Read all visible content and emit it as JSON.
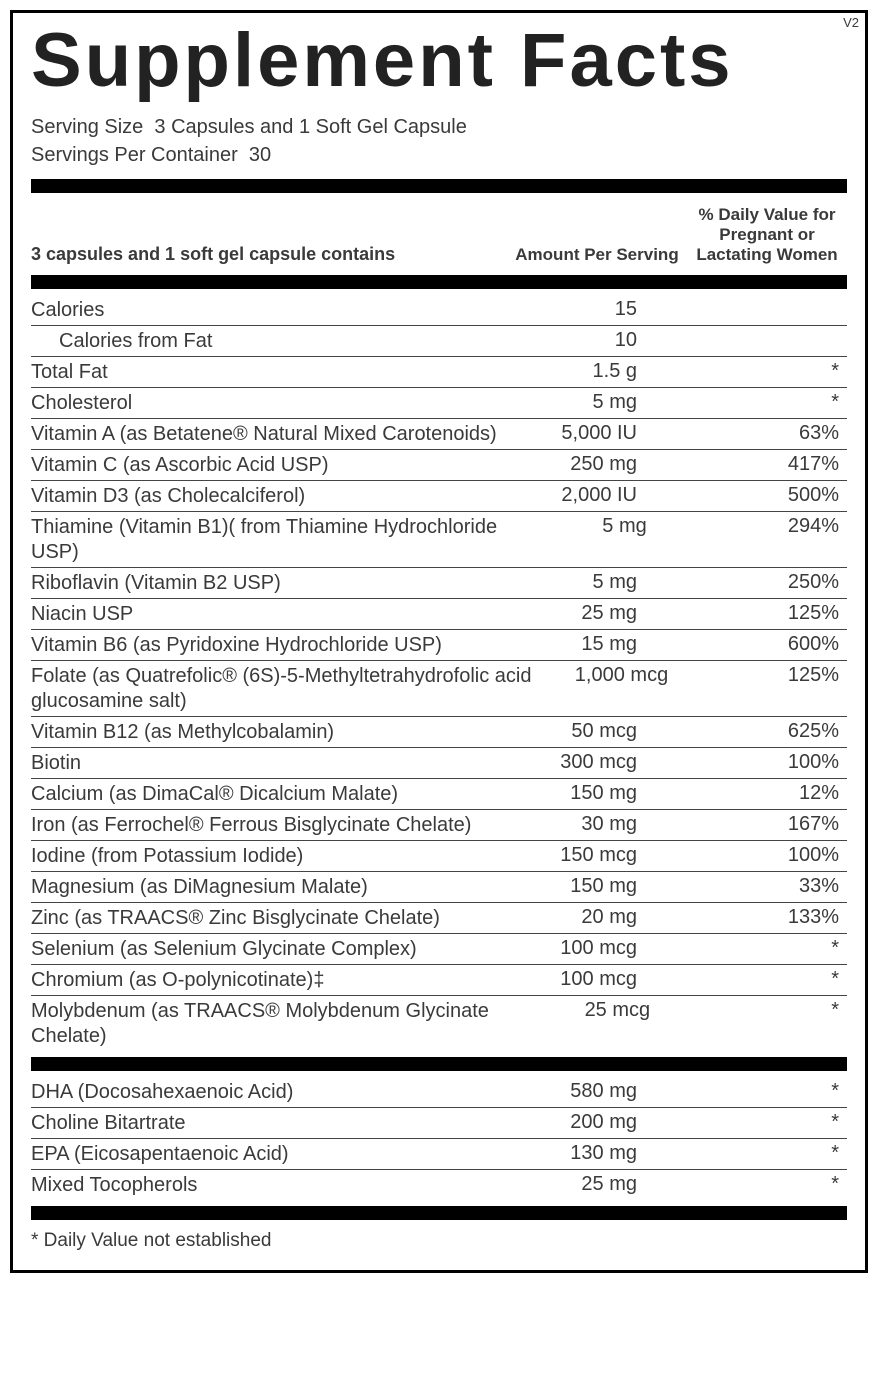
{
  "version": "V2",
  "title": "Supplement Facts",
  "serving_size_label": "Serving Size",
  "serving_size_value": "3 Capsules and 1 Soft Gel Capsule",
  "servings_per_container_label": "Servings Per Container",
  "servings_per_container_value": "30",
  "header": {
    "name": "3 capsules and 1 soft gel capsule contains",
    "amount": "Amount Per Serving",
    "dv": "% Daily Value for Pregnant or Lactating Women"
  },
  "section1": [
    {
      "name": "Calories",
      "amount": "15",
      "dv": "",
      "indent": false
    },
    {
      "name": "Calories from Fat",
      "amount": "10",
      "dv": "",
      "indent": true
    },
    {
      "name": "Total Fat",
      "amount": "1.5 g",
      "dv": "*",
      "indent": false
    },
    {
      "name": "Cholesterol",
      "amount": "5 mg",
      "dv": "*",
      "indent": false
    },
    {
      "name": "Vitamin A (as Betatene® Natural Mixed Carotenoids)",
      "amount": "5,000 IU",
      "dv": "63%",
      "indent": false
    },
    {
      "name": "Vitamin C (as Ascorbic Acid USP)",
      "amount": "250 mg",
      "dv": "417%",
      "indent": false
    },
    {
      "name": "Vitamin D3 (as Cholecalciferol)",
      "amount": "2,000 IU",
      "dv": "500%",
      "indent": false
    },
    {
      "name": "Thiamine (Vitamin B1)( from Thiamine Hydrochloride USP)",
      "amount": "5 mg",
      "dv": "294%",
      "indent": false
    },
    {
      "name": "Riboflavin (Vitamin B2 USP)",
      "amount": "5 mg",
      "dv": "250%",
      "indent": false
    },
    {
      "name": "Niacin USP",
      "amount": "25 mg",
      "dv": "125%",
      "indent": false
    },
    {
      "name": "Vitamin B6 (as Pyridoxine Hydrochloride USP)",
      "amount": "15 mg",
      "dv": "600%",
      "indent": false
    },
    {
      "name": "Folate (as Quatrefolic® (6S)-5-Methyltetrahydrofolic acid glucosamine salt)",
      "amount": "1,000 mcg",
      "dv": "125%",
      "indent": false
    },
    {
      "name": "Vitamin B12 (as Methylcobalamin)",
      "amount": "50 mcg",
      "dv": "625%",
      "indent": false
    },
    {
      "name": "Biotin",
      "amount": "300 mcg",
      "dv": "100%",
      "indent": false
    },
    {
      "name": "Calcium (as DimaCal® Dicalcium Malate)",
      "amount": "150 mg",
      "dv": "12%",
      "indent": false
    },
    {
      "name": "Iron (as Ferrochel® Ferrous Bisglycinate Chelate)",
      "amount": "30 mg",
      "dv": "167%",
      "indent": false
    },
    {
      "name": "Iodine (from Potassium Iodide)",
      "amount": "150 mcg",
      "dv": "100%",
      "indent": false
    },
    {
      "name": "Magnesium (as DiMagnesium Malate)",
      "amount": "150 mg",
      "dv": "33%",
      "indent": false
    },
    {
      "name": "Zinc (as TRAACS® Zinc Bisglycinate Chelate)",
      "amount": "20 mg",
      "dv": "133%",
      "indent": false
    },
    {
      "name": "Selenium (as Selenium Glycinate Complex)",
      "amount": "100 mcg",
      "dv": "*",
      "indent": false
    },
    {
      "name": "Chromium (as O-polynicotinate)‡",
      "amount": "100 mcg",
      "dv": "*",
      "indent": false
    },
    {
      "name": "Molybdenum (as TRAACS® Molybdenum Glycinate Chelate)",
      "amount": "25 mcg",
      "dv": "*",
      "indent": false
    }
  ],
  "section2": [
    {
      "name": "DHA (Docosahexaenoic Acid)",
      "amount": "580 mg",
      "dv": "*",
      "indent": false
    },
    {
      "name": "Choline Bitartrate",
      "amount": "200 mg",
      "dv": "*",
      "indent": false
    },
    {
      "name": "EPA (Eicosapentaenoic Acid)",
      "amount": "130 mg",
      "dv": "*",
      "indent": false
    },
    {
      "name": "Mixed Tocopherols",
      "amount": "25 mg",
      "dv": "*",
      "indent": false
    }
  ],
  "footnote": "* Daily Value not established"
}
